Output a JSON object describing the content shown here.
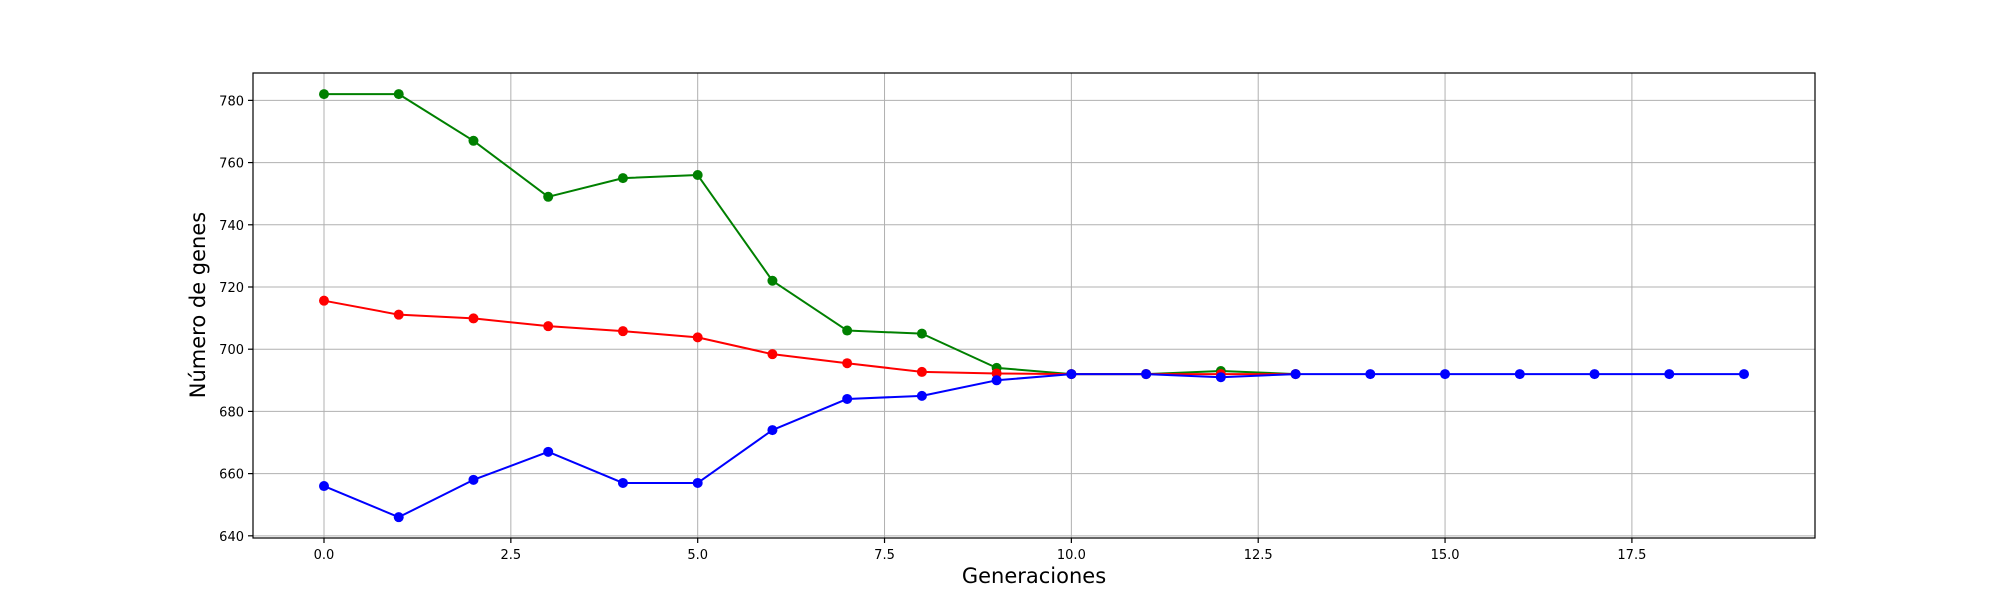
{
  "chart_data": {
    "type": "line",
    "xlabel": "Generaciones",
    "ylabel": "Número de genes",
    "xlim": [
      -0.95,
      19.95
    ],
    "ylim": [
      639.3,
      788.8
    ],
    "xticks": [
      0.0,
      2.5,
      5.0,
      7.5,
      10.0,
      12.5,
      15.0,
      17.5
    ],
    "xtick_labels": [
      "0.0",
      "2.5",
      "5.0",
      "7.5",
      "10.0",
      "12.5",
      "15.0",
      "17.5"
    ],
    "yticks": [
      640,
      660,
      680,
      700,
      720,
      740,
      760,
      780
    ],
    "ytick_labels": [
      "640",
      "660",
      "680",
      "700",
      "720",
      "740",
      "760",
      "780"
    ],
    "grid": true,
    "series": [
      {
        "color": "#008000",
        "marker": "circle",
        "x": [
          0,
          1,
          2,
          3,
          4,
          5,
          6,
          7,
          8,
          9,
          10,
          11,
          12,
          13
        ],
        "y": [
          782,
          782,
          767,
          749,
          755,
          756,
          722,
          706,
          705,
          694,
          692,
          692,
          693,
          692
        ]
      },
      {
        "color": "#ff0000",
        "marker": "circle",
        "x": [
          0,
          1,
          2,
          3,
          4,
          5,
          6,
          7,
          8,
          9,
          10,
          11,
          12,
          13
        ],
        "y": [
          715.6,
          711.1,
          709.9,
          707.4,
          705.8,
          703.8,
          698.4,
          695.5,
          692.7,
          692.2,
          692,
          692,
          692,
          692
        ]
      },
      {
        "color": "#0000ff",
        "marker": "circle",
        "x": [
          0,
          1,
          2,
          3,
          4,
          5,
          6,
          7,
          8,
          9,
          10,
          11,
          12,
          13,
          14,
          15,
          16,
          17,
          18,
          19
        ],
        "y": [
          656,
          646,
          658,
          667,
          657,
          657,
          674,
          684,
          685,
          690,
          692,
          692,
          691,
          692,
          692,
          692,
          692,
          692,
          692,
          692
        ]
      }
    ]
  }
}
